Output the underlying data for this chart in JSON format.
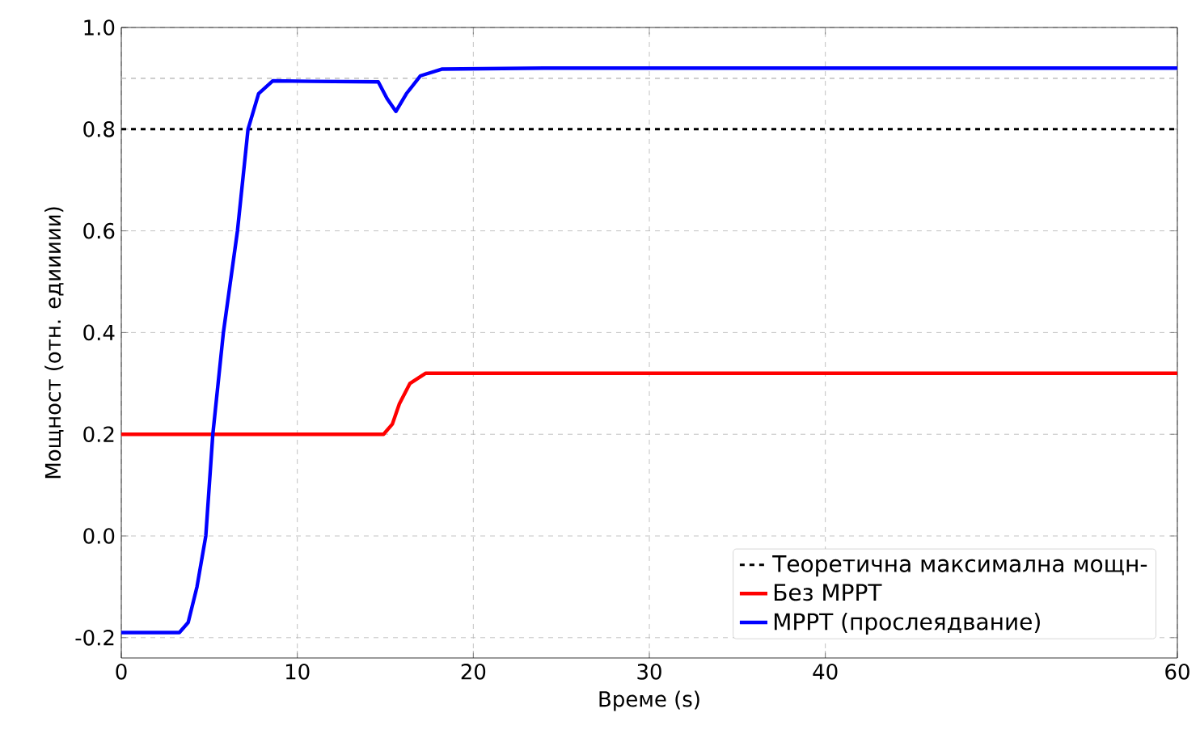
{
  "chart_data": {
    "type": "line",
    "xlabel": "Време (s)",
    "ylabel": "Мощност (отн. едиииии)",
    "xlim": [
      0,
      60
    ],
    "ylim": [
      -0.24,
      1.0
    ],
    "xticks": [
      0,
      10,
      20,
      30,
      40,
      60
    ],
    "yticks": [
      -0.2,
      {
        "value": 0,
        "label": "0.0"
      },
      0.2,
      0.4,
      0.6,
      0.8,
      {
        "value": 1,
        "label": "1.0"
      }
    ],
    "grid": true,
    "legend": "bottom right",
    "line_style": "solid",
    "marker": "none",
    "ref_lines": [
      {
        "axis": "y",
        "value": 0.8,
        "label": "Теоретична максимална мощн-",
        "color": "#000000",
        "line_style": "dashed"
      },
      {
        "axis": "y",
        "value": 0.9,
        "color": "#b0b0b0",
        "line_style": "dashed"
      }
    ],
    "series": [
      {
        "name": "Без MPPT",
        "color": "#ff0000",
        "x": [
          0,
          6,
          12,
          14.9,
          15.4,
          15.8,
          16.4,
          17.3,
          24,
          36,
          48,
          60
        ],
        "values": [
          0.2,
          0.2,
          0.2,
          0.2,
          0.22,
          0.26,
          0.3,
          0.32,
          0.32,
          0.32,
          0.32,
          0.32
        ]
      },
      {
        "name": "MPPT  (прослеядвание)",
        "color": "#0000ff",
        "x": [
          0,
          2.4,
          3.3,
          3.8,
          4.3,
          4.8,
          5.2,
          5.8,
          6.6,
          7.2,
          7.8,
          8.6,
          10.8,
          14.6,
          15.1,
          15.6,
          16.2,
          17.0,
          18.2,
          24,
          36,
          48,
          60
        ],
        "values": [
          -0.19,
          -0.19,
          -0.19,
          -0.17,
          -0.1,
          0.0,
          0.2,
          0.4,
          0.6,
          0.8,
          0.87,
          0.895,
          0.894,
          0.893,
          0.86,
          0.835,
          0.87,
          0.905,
          0.918,
          0.92,
          0.92,
          0.92,
          0.92
        ]
      }
    ]
  }
}
